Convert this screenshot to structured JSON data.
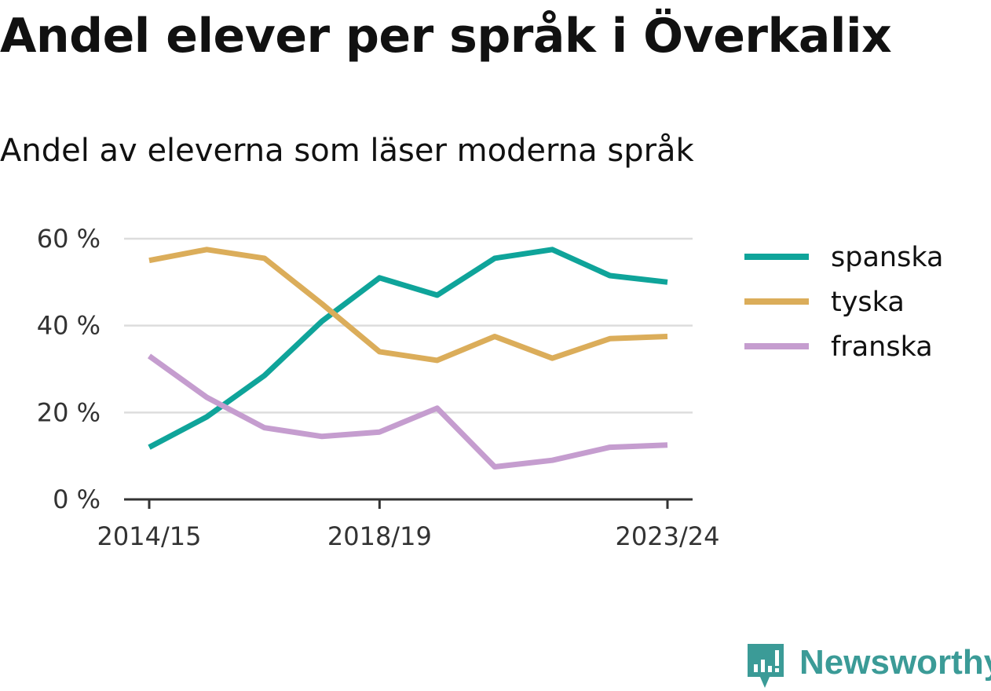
{
  "title": "Andel elever per språk i Överkalix",
  "subtitle": "Andel av eleverna som läser moderna språk",
  "brand": {
    "name": "Newsworthy",
    "color": "#3b9b97",
    "icon": "newsworthy-logo-icon"
  },
  "chart_data": {
    "type": "line",
    "x": [
      "2014/15",
      "2015/16",
      "2016/17",
      "2017/18",
      "2018/19",
      "2019/20",
      "2020/21",
      "2021/22",
      "2022/23",
      "2023/24"
    ],
    "x_tick_labels": [
      "2014/15",
      "2018/19",
      "2023/24"
    ],
    "y_ticks": [
      0,
      20,
      40,
      60
    ],
    "y_tick_labels": [
      "0 %",
      "20 %",
      "40 %",
      "60 %"
    ],
    "ylim": [
      0,
      60
    ],
    "ylabel": "",
    "xlabel": "",
    "grid": "horizontal",
    "legend_position": "right",
    "series": [
      {
        "name": "spanska",
        "color": "#0fa49a",
        "values": [
          12,
          19,
          28.5,
          41,
          51,
          47,
          55.5,
          57.5,
          51.5,
          50
        ]
      },
      {
        "name": "tyska",
        "color": "#dbad5a",
        "values": [
          55,
          57.5,
          55.5,
          45,
          34,
          32,
          37.5,
          32.5,
          37,
          37.5
        ]
      },
      {
        "name": "franska",
        "color": "#c59dcf",
        "values": [
          33,
          23.5,
          16.5,
          14.5,
          15.5,
          21,
          7.5,
          9,
          12,
          12.5
        ]
      }
    ]
  }
}
